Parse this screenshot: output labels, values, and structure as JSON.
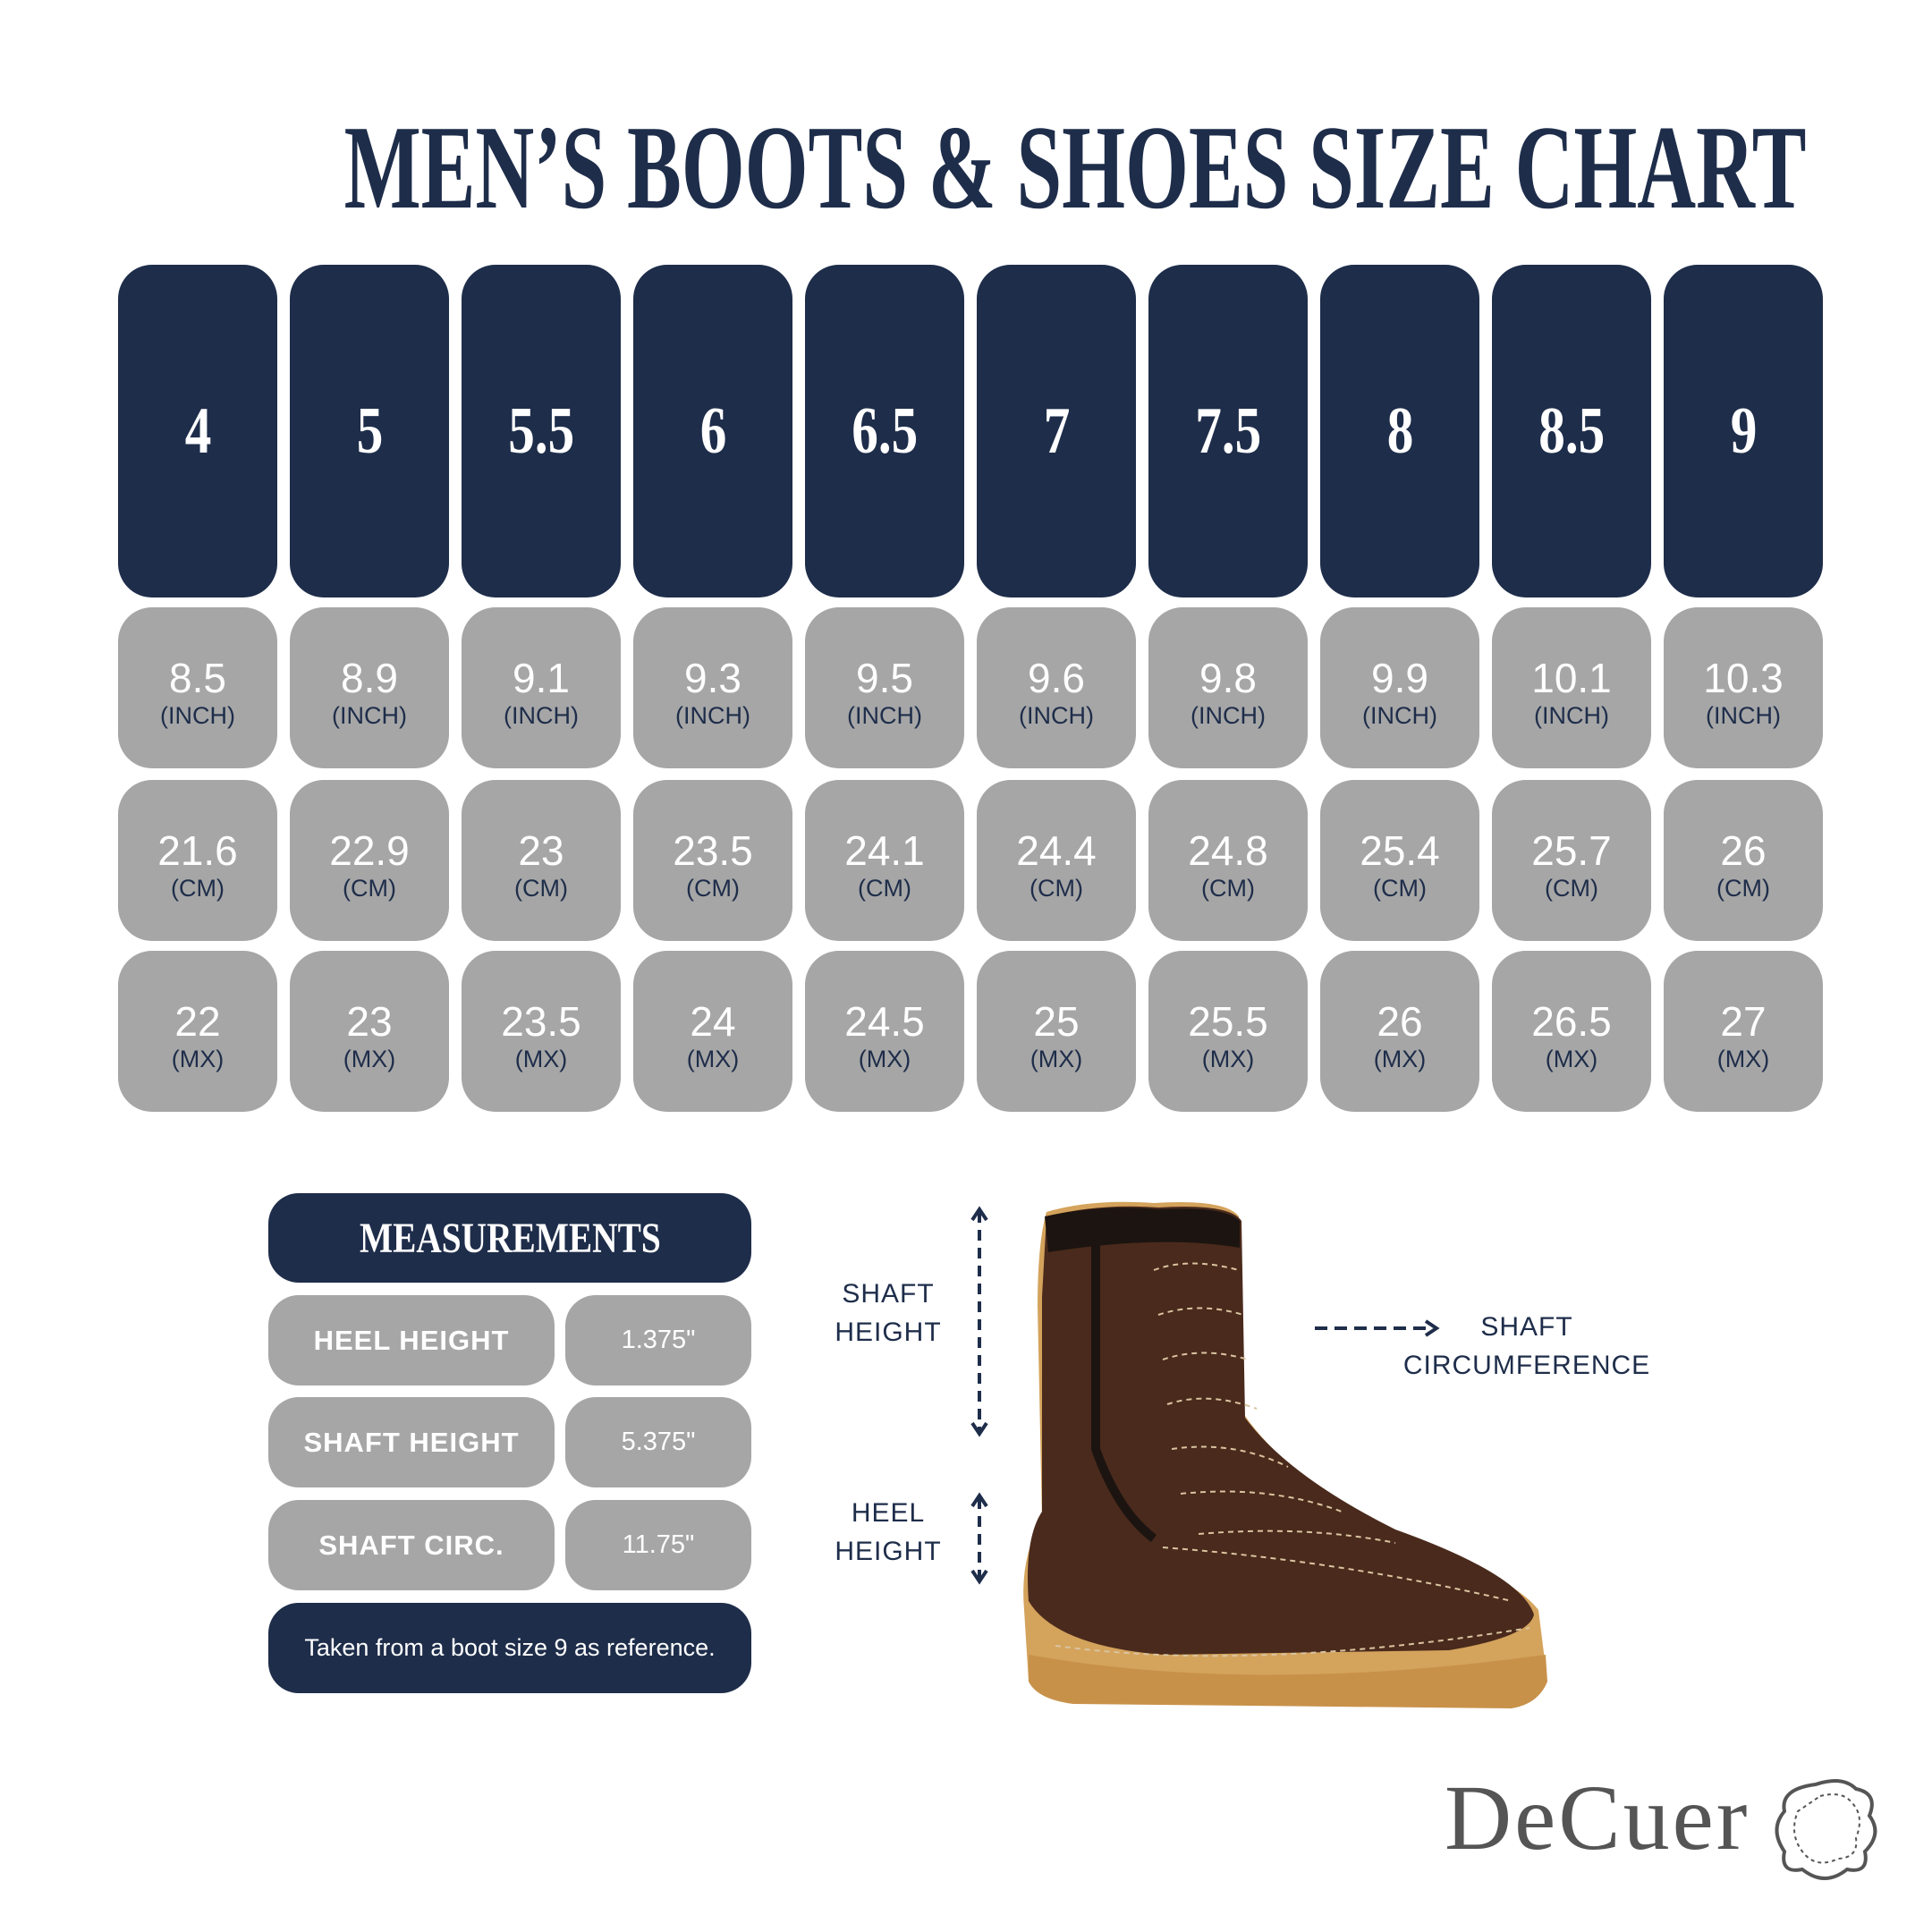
{
  "header": {
    "title": "MEN’S BOOTS & SHOES SIZE CHART"
  },
  "table": {
    "sizes": [
      "4",
      "5",
      "5.5",
      "6",
      "6.5",
      "7",
      "7.5",
      "8",
      "8.5",
      "9"
    ],
    "rows": [
      {
        "unit": "(INCH)",
        "values": [
          "8.5",
          "8.9",
          "9.1",
          "9.3",
          "9.5",
          "9.6",
          "9.8",
          "9.9",
          "10.1",
          "10.3"
        ]
      },
      {
        "unit": "(CM)",
        "values": [
          "21.6",
          "22.9",
          "23",
          "23.5",
          "24.1",
          "24.4",
          "24.8",
          "25.4",
          "25.7",
          "26"
        ]
      },
      {
        "unit": "(MX)",
        "values": [
          "22",
          "23",
          "23.5",
          "24",
          "24.5",
          "25",
          "25.5",
          "26",
          "26.5",
          "27"
        ]
      }
    ]
  },
  "measurements": {
    "title": "MEASUREMENTS",
    "rows": [
      {
        "label": "HEEL HEIGHT",
        "value": "1.375\""
      },
      {
        "label": "SHAFT HEIGHT",
        "value": "5.375\""
      },
      {
        "label": "SHAFT CIRC.",
        "value": "11.75\""
      }
    ],
    "note": "Taken from a boot size 9 as reference."
  },
  "diagram": {
    "shaft_height": "SHAFT HEIGHT",
    "heel_height": "HEEL HEIGHT",
    "shaft_circumference": "SHAFT CIRCUMFERENCE"
  },
  "brand": "DeCuer"
}
